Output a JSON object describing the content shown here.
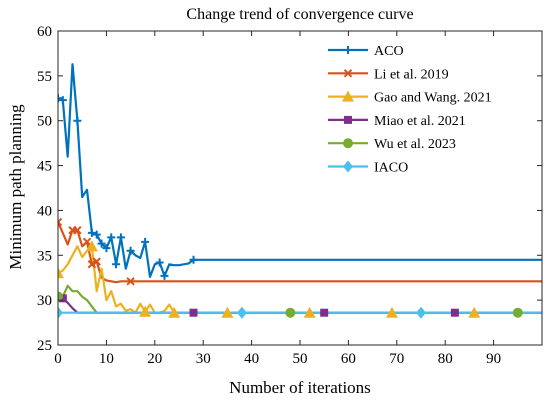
{
  "chart_data": {
    "type": "line",
    "title": "Change trend of convergence curve",
    "xlabel": "Number of iterations",
    "ylabel": "Minimum path planning",
    "xlim": [
      0,
      100
    ],
    "ylim": [
      25,
      60
    ],
    "xticks": [
      0,
      10,
      20,
      30,
      40,
      50,
      60,
      70,
      80,
      90
    ],
    "yticks": [
      25,
      30,
      35,
      40,
      45,
      50,
      55,
      60
    ],
    "grid": false,
    "legend_position": "top-right",
    "series": [
      {
        "name": "ACO",
        "color": "#0072BD",
        "marker": "plus",
        "x": [
          0,
          1,
          2,
          3,
          4,
          5,
          6,
          7,
          8,
          9,
          10,
          11,
          12,
          13,
          14,
          15,
          16,
          17,
          18,
          19,
          20,
          21,
          22,
          23,
          24,
          25,
          26,
          27,
          28,
          29,
          35,
          45,
          55,
          65,
          75,
          85,
          95,
          100
        ],
        "y": [
          52.5,
          52.3,
          46.0,
          56.3,
          50.0,
          41.5,
          42.3,
          37.5,
          37.3,
          36.3,
          35.8,
          37.0,
          34.0,
          37.0,
          33.5,
          35.5,
          35.0,
          34.7,
          36.5,
          32.6,
          34.0,
          34.2,
          32.7,
          34.0,
          33.9,
          33.9,
          34.0,
          34.1,
          34.5,
          34.5,
          34.5,
          34.5,
          34.5,
          34.5,
          34.5,
          34.5,
          34.5,
          34.5
        ]
      },
      {
        "name": "Li et al. 2019",
        "color": "#D95319",
        "marker": "x",
        "x": [
          0,
          1,
          2,
          3,
          4,
          5,
          6,
          7,
          8,
          9,
          10,
          11,
          12,
          13,
          14,
          15,
          20,
          30,
          40,
          50,
          60,
          70,
          80,
          90,
          100
        ],
        "y": [
          38.7,
          37.5,
          36.2,
          37.8,
          37.8,
          36.0,
          36.5,
          34.0,
          34.3,
          32.5,
          32.2,
          32.1,
          32.0,
          32.1,
          32.1,
          32.1,
          32.1,
          32.1,
          32.1,
          32.1,
          32.1,
          32.1,
          32.1,
          32.1,
          32.1
        ]
      },
      {
        "name": "Gao and Wang. 2021",
        "color": "#EDB120",
        "marker": "triangle",
        "x": [
          0,
          1,
          2,
          3,
          4,
          5,
          6,
          7,
          8,
          9,
          10,
          11,
          12,
          13,
          14,
          15,
          16,
          17,
          18,
          19,
          20,
          21,
          22,
          23,
          24,
          35,
          52,
          69,
          86,
          100
        ],
        "y": [
          33.0,
          33.3,
          34.0,
          35.0,
          36.0,
          34.8,
          35.5,
          36.0,
          31.0,
          33.5,
          30.0,
          31.0,
          29.3,
          29.6,
          28.8,
          29.0,
          28.6,
          29.6,
          28.7,
          29.5,
          28.6,
          28.6,
          28.8,
          29.5,
          28.6,
          28.6,
          28.6,
          28.6,
          28.6,
          28.6
        ]
      },
      {
        "name": "Miao et al. 2021",
        "color": "#7E2F8E",
        "marker": "square",
        "x": [
          0,
          1,
          2,
          3,
          4,
          28,
          55,
          82,
          100
        ],
        "y": [
          30.3,
          30.2,
          29.7,
          29.1,
          28.6,
          28.6,
          28.6,
          28.6,
          28.6
        ]
      },
      {
        "name": "Wu et al. 2023",
        "color": "#77AC30",
        "marker": "circle",
        "x": [
          0,
          1,
          2,
          3,
          4,
          5,
          6,
          7,
          8,
          48,
          95,
          100
        ],
        "y": [
          30.4,
          30.4,
          31.6,
          31.0,
          31.0,
          30.4,
          30.0,
          29.3,
          28.6,
          28.6,
          28.6,
          28.6
        ]
      },
      {
        "name": "IACO",
        "color": "#4DBEEE",
        "marker": "diamond",
        "x": [
          0,
          38,
          75,
          100
        ],
        "y": [
          28.6,
          28.6,
          28.6,
          28.6
        ]
      }
    ],
    "marker_points": [
      {
        "series": 0,
        "x": [
          0,
          1,
          4,
          7,
          8,
          9,
          10,
          11,
          12,
          13,
          15,
          18,
          21,
          22,
          28
        ]
      },
      {
        "series": 1,
        "x": [
          0,
          3,
          4,
          6,
          7,
          8,
          15
        ]
      },
      {
        "series": 2,
        "x": [
          0,
          7,
          18,
          24,
          35,
          52,
          69,
          86
        ]
      },
      {
        "series": 3,
        "x": [
          1,
          28,
          55,
          82
        ]
      },
      {
        "series": 4,
        "x": [
          0,
          48,
          95
        ]
      },
      {
        "series": 5,
        "x": [
          0,
          38,
          75
        ]
      }
    ]
  }
}
